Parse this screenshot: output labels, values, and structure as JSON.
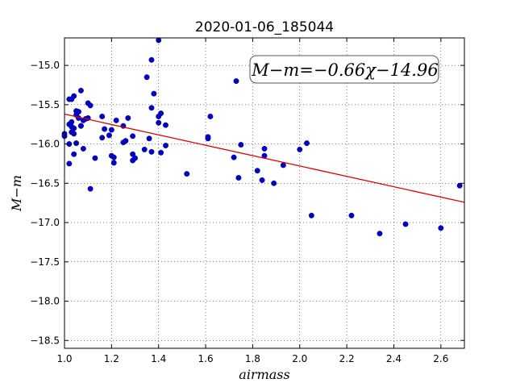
{
  "chart_data": {
    "type": "scatter",
    "title": "2020-01-06_185044",
    "xlabel": "airmass",
    "ylabel": "M−m",
    "xlim": [
      1.0,
      2.7
    ],
    "ylim": [
      -18.6,
      -14.65
    ],
    "y_inverted": true,
    "grid": true,
    "x_ticks": [
      1.0,
      1.2,
      1.4,
      1.6,
      1.8,
      2.0,
      2.2,
      2.4,
      2.6
    ],
    "x_tick_labels": [
      "1.0",
      "1.2",
      "1.4",
      "1.6",
      "1.8",
      "2.0",
      "2.2",
      "2.4",
      "2.6"
    ],
    "y_ticks": [
      -15.0,
      -15.5,
      -16.0,
      -16.5,
      -17.0,
      -17.5,
      -18.0,
      -18.5
    ],
    "y_tick_labels": [
      "−15.0",
      "−15.5",
      "−16.0",
      "−16.5",
      "−17.0",
      "−17.5",
      "−18.0",
      "−18.5"
    ],
    "annotation": "M−m=−0.66χ−14.96",
    "fit": {
      "slope": -0.66,
      "intercept": -14.96
    },
    "colors": {
      "points": "#0000cc",
      "fit_line": "#dd0000"
    },
    "points": [
      [
        1.0,
        -15.87
      ],
      [
        1.0,
        -15.9
      ],
      [
        1.02,
        -15.43
      ],
      [
        1.02,
        -16.0
      ],
      [
        1.02,
        -16.25
      ],
      [
        1.02,
        -15.75
      ],
      [
        1.03,
        -15.72
      ],
      [
        1.03,
        -15.78
      ],
      [
        1.03,
        -15.85
      ],
      [
        1.03,
        -15.43
      ],
      [
        1.04,
        -15.8
      ],
      [
        1.04,
        -15.87
      ],
      [
        1.04,
        -16.13
      ],
      [
        1.04,
        -15.39
      ],
      [
        1.05,
        -15.63
      ],
      [
        1.05,
        -15.58
      ],
      [
        1.05,
        -15.99
      ],
      [
        1.06,
        -15.67
      ],
      [
        1.06,
        -15.59
      ],
      [
        1.07,
        -15.77
      ],
      [
        1.07,
        -15.77
      ],
      [
        1.07,
        -15.32
      ],
      [
        1.08,
        -16.06
      ],
      [
        1.08,
        -15.7
      ],
      [
        1.09,
        -15.68
      ],
      [
        1.1,
        -15.67
      ],
      [
        1.1,
        -15.48
      ],
      [
        1.11,
        -16.57
      ],
      [
        1.11,
        -15.51
      ],
      [
        1.13,
        -16.18
      ],
      [
        1.16,
        -15.65
      ],
      [
        1.16,
        -15.92
      ],
      [
        1.17,
        -15.81
      ],
      [
        1.19,
        -15.89
      ],
      [
        1.2,
        -15.82
      ],
      [
        1.2,
        -16.15
      ],
      [
        1.21,
        -16.17
      ],
      [
        1.21,
        -16.24
      ],
      [
        1.22,
        -15.7
      ],
      [
        1.25,
        -15.77
      ],
      [
        1.25,
        -15.98
      ],
      [
        1.26,
        -15.96
      ],
      [
        1.27,
        -15.67
      ],
      [
        1.29,
        -15.9
      ],
      [
        1.29,
        -16.13
      ],
      [
        1.29,
        -16.21
      ],
      [
        1.3,
        -16.18
      ],
      [
        1.34,
        -16.07
      ],
      [
        1.35,
        -15.15
      ],
      [
        1.36,
        -15.93
      ],
      [
        1.37,
        -16.1
      ],
      [
        1.37,
        -14.93
      ],
      [
        1.37,
        -15.54
      ],
      [
        1.38,
        -15.36
      ],
      [
        1.4,
        -14.68
      ],
      [
        1.4,
        -15.65
      ],
      [
        1.4,
        -15.73
      ],
      [
        1.41,
        -15.61
      ],
      [
        1.41,
        -16.11
      ],
      [
        1.43,
        -15.76
      ],
      [
        1.43,
        -16.02
      ],
      [
        1.52,
        -16.38
      ],
      [
        1.61,
        -15.93
      ],
      [
        1.61,
        -15.91
      ],
      [
        1.62,
        -15.65
      ],
      [
        1.72,
        -16.17
      ],
      [
        1.73,
        -15.2
      ],
      [
        1.74,
        -16.43
      ],
      [
        1.75,
        -16.01
      ],
      [
        1.82,
        -16.34
      ],
      [
        1.84,
        -16.46
      ],
      [
        1.85,
        -16.15
      ],
      [
        1.85,
        -16.06
      ],
      [
        1.89,
        -16.5
      ],
      [
        1.93,
        -16.27
      ],
      [
        2.0,
        -16.07
      ],
      [
        2.03,
        -15.99
      ],
      [
        2.05,
        -16.91
      ],
      [
        2.22,
        -16.91
      ],
      [
        2.34,
        -17.14
      ],
      [
        2.45,
        -17.02
      ],
      [
        2.6,
        -17.07
      ],
      [
        2.68,
        -16.53
      ]
    ]
  }
}
